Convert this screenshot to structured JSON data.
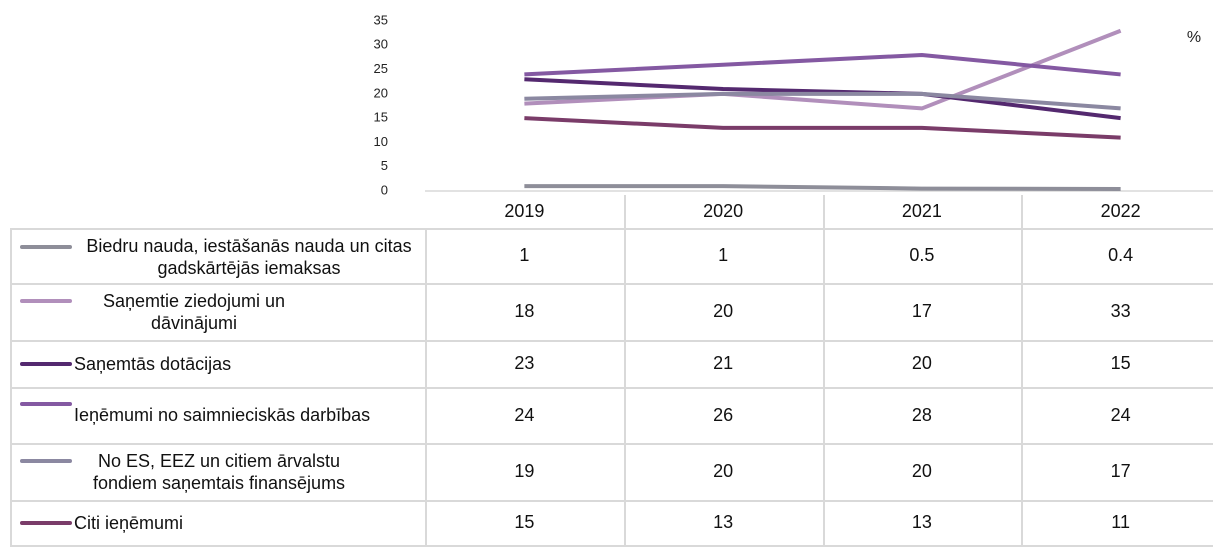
{
  "chart_data": {
    "type": "line",
    "unit_label": "%",
    "categories": [
      "2019",
      "2020",
      "2021",
      "2022"
    ],
    "ylim": [
      0,
      35
    ],
    "yticks": [
      0,
      5,
      10,
      15,
      20,
      25,
      30,
      35
    ],
    "grid": false,
    "series": [
      {
        "name": "Biedru nauda, iestāšanās nauda un citas gadskārtējās iemaksas",
        "color": "#8e8e99",
        "values": [
          1,
          1,
          0.5,
          0.4
        ]
      },
      {
        "name": "Saņemtie ziedojumi un dāvinājumi",
        "color": "#b18fbb",
        "values": [
          18,
          20,
          17,
          33
        ]
      },
      {
        "name": "Saņemtās dotācijas",
        "color": "#54296f",
        "values": [
          23,
          21,
          20,
          15
        ]
      },
      {
        "name": "Ieņēmumi no saimnieciskās darbības",
        "color": "#8459a2",
        "values": [
          24,
          26,
          28,
          24
        ]
      },
      {
        "name": "No ES, EEZ un citiem ārvalstu fondiem saņemtais finansējums",
        "color": "#8b88a1",
        "values": [
          19,
          20,
          20,
          17
        ]
      },
      {
        "name": "Citi ieņēmumi",
        "color": "#7a3c69",
        "values": [
          15,
          13,
          13,
          11
        ]
      }
    ]
  }
}
